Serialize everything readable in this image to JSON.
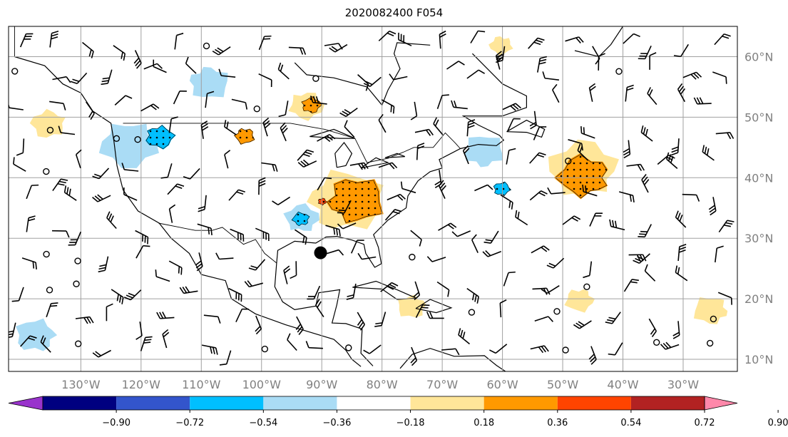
{
  "title": "2020082400 F054",
  "map": {
    "lon_range": [
      -142,
      -21
    ],
    "lat_range": [
      8,
      65
    ],
    "lon_labels": [
      {
        "lon": -130,
        "text": "130°W"
      },
      {
        "lon": -120,
        "text": "120°W"
      },
      {
        "lon": -110,
        "text": "110°W"
      },
      {
        "lon": -100,
        "text": "100°W"
      },
      {
        "lon": -90,
        "text": "90°W"
      },
      {
        "lon": -80,
        "text": "80°W"
      },
      {
        "lon": -70,
        "text": "70°W"
      },
      {
        "lon": -60,
        "text": "60°W"
      },
      {
        "lon": -50,
        "text": "50°W"
      },
      {
        "lon": -40,
        "text": "40°W"
      },
      {
        "lon": -30,
        "text": "30°W"
      }
    ],
    "lat_labels": [
      {
        "lat": 60,
        "text": "60°N"
      },
      {
        "lat": 50,
        "text": "50°N"
      },
      {
        "lat": 40,
        "text": "40°N"
      },
      {
        "lat": 30,
        "text": "30°N"
      },
      {
        "lat": 20,
        "text": "20°N"
      },
      {
        "lat": 10,
        "text": "10°N"
      }
    ],
    "label_color": "#808080",
    "gridline_color": "#a0a0a0",
    "marker": {
      "lon": -90.2,
      "lat": 27.6,
      "name": "storm-center-marker"
    }
  },
  "colorbar": {
    "ticks": [
      "−0.90",
      "−0.72",
      "−0.54",
      "−0.36",
      "−0.18",
      "0.18",
      "0.36",
      "0.54",
      "0.72",
      "0.90"
    ],
    "colors": [
      "#9933cc",
      "#000080",
      "#3355cc",
      "#00bfff",
      "#aadcf5",
      "#ffffff",
      "#ffe699",
      "#ff9900",
      "#ff4400",
      "#b22222",
      "#ff88aa"
    ]
  },
  "field_regions": [
    {
      "lon": -122,
      "lat": 46,
      "color": "#aadcf5",
      "scale": 1.0
    },
    {
      "lon": -117,
      "lat": 47,
      "color": "#00bfff",
      "scale": 0.5
    },
    {
      "lon": -109,
      "lat": 56,
      "color": "#aadcf5",
      "scale": 0.7
    },
    {
      "lon": -103,
      "lat": 47,
      "color": "#ff9900",
      "scale": 0.35
    },
    {
      "lon": -93,
      "lat": 52,
      "color": "#ffe699",
      "scale": 0.6
    },
    {
      "lon": -92,
      "lat": 52,
      "color": "#ff9900",
      "scale": 0.35
    },
    {
      "lon": -87,
      "lat": 36,
      "color": "#ffe699",
      "scale": 1.3
    },
    {
      "lon": -85,
      "lat": 36,
      "color": "#ff9900",
      "scale": 1.0
    },
    {
      "lon": -90,
      "lat": 36,
      "color": "#ff4400",
      "scale": 0.15
    },
    {
      "lon": -93.5,
      "lat": 33,
      "color": "#aadcf5",
      "scale": 0.6
    },
    {
      "lon": -93.5,
      "lat": 33,
      "color": "#00bfff",
      "scale": 0.3
    },
    {
      "lon": -63,
      "lat": 44,
      "color": "#aadcf5",
      "scale": 0.7
    },
    {
      "lon": -60,
      "lat": 38,
      "color": "#00bfff",
      "scale": 0.3
    },
    {
      "lon": -46,
      "lat": 41,
      "color": "#ffe699",
      "scale": 1.2
    },
    {
      "lon": -46,
      "lat": 40,
      "color": "#ff9900",
      "scale": 0.9
    },
    {
      "lon": -25,
      "lat": 18,
      "color": "#ffe699",
      "scale": 0.6
    },
    {
      "lon": -137,
      "lat": 14,
      "color": "#aadcf5",
      "scale": 0.7
    },
    {
      "lon": -135,
      "lat": 49,
      "color": "#ffe699",
      "scale": 0.6
    },
    {
      "lon": -60,
      "lat": 62,
      "color": "#ffe699",
      "scale": 0.4
    },
    {
      "lon": -47,
      "lat": 20,
      "color": "#ffe699",
      "scale": 0.5
    },
    {
      "lon": -75,
      "lat": 19,
      "color": "#ffe699",
      "scale": 0.5
    }
  ]
}
